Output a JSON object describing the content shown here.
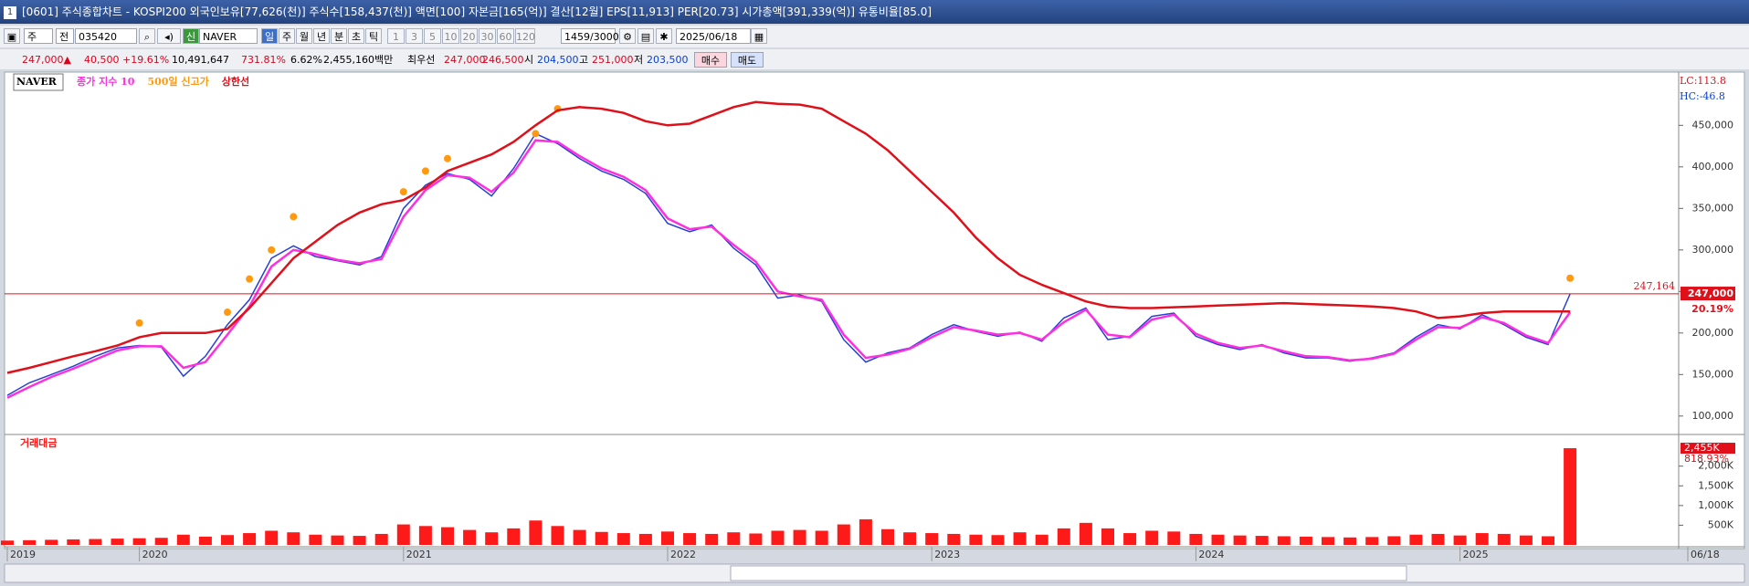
{
  "window": {
    "title": "[0601] 주식종합차트 - KOSPI200 외국인보유[77,626(천)] 주식수[158,437(천)] 액면[100] 자본금[165(억)] 결산[12월] EPS[11,913] PER[20.73] 시가총액[391,339(억)] 유통비율[85.0]",
    "number": "1"
  },
  "toolbar": {
    "mode": "주",
    "type": "전",
    "code": "035420",
    "flag": "신",
    "name": "NAVER",
    "periods": [
      "일",
      "주",
      "월",
      "년",
      "분",
      "초",
      "틱"
    ],
    "intervals": [
      "1",
      "3",
      "5",
      "10",
      "20",
      "30",
      "60",
      "120"
    ],
    "count": "1459/3000",
    "date": "2025/06/18"
  },
  "info_row": {
    "price": "247,000▲",
    "change": "40,500",
    "change_pct": "+19.61%",
    "volume": "10,491,647",
    "volume_pct": "731.81%",
    "turnover": "6.62%",
    "amount": "2,455,160백만",
    "best_label": "최우선",
    "best_ask": "247,000",
    "best_bid": "246,500",
    "open_label": "시",
    "open": "204,500",
    "high_label": "고",
    "high": "251,000",
    "low_label": "저",
    "low": "203,500",
    "buy": "매수",
    "sell": "매도"
  },
  "chart_data": [
    {
      "type": "line",
      "lc": "LC:113.8",
      "hc": "HC:-46.8",
      "categories": [
        "2019",
        null,
        null,
        null,
        null,
        null,
        "2020",
        null,
        null,
        null,
        null,
        null,
        null,
        null,
        null,
        null,
        null,
        null,
        "2021",
        null,
        null,
        null,
        null,
        null,
        null,
        null,
        null,
        null,
        null,
        null,
        "2022",
        null,
        null,
        null,
        null,
        null,
        null,
        null,
        null,
        null,
        null,
        null,
        "2023",
        null,
        null,
        null,
        null,
        null,
        null,
        null,
        null,
        null,
        null,
        null,
        "2024",
        null,
        null,
        null,
        null,
        null,
        null,
        null,
        null,
        null,
        null,
        null,
        "2025",
        null,
        null,
        null,
        null,
        "06/18"
      ],
      "series": [
        {
          "name": "NAVER",
          "color": "#2440d8",
          "values": [
            125000,
            140000,
            150000,
            160000,
            172000,
            182000,
            185000,
            183000,
            148000,
            172000,
            210000,
            240000,
            290000,
            305000,
            292000,
            287000,
            282000,
            292000,
            350000,
            378000,
            392000,
            385000,
            365000,
            398000,
            440000,
            428000,
            410000,
            395000,
            385000,
            368000,
            332000,
            322000,
            330000,
            302000,
            282000,
            242000,
            246000,
            238000,
            192000,
            165000,
            176000,
            182000,
            198000,
            210000,
            202000,
            196000,
            201000,
            190000,
            218000,
            230000,
            192000,
            196000,
            220000,
            224000,
            196000,
            186000,
            180000,
            186000,
            176000,
            170000,
            170000,
            166000,
            170000,
            176000,
            195000,
            210000,
            205000,
            222000,
            210000,
            195000,
            186000,
            247000
          ]
        },
        {
          "name": "종가 지수 10",
          "color": "#ff2fe0",
          "values": [
            122000,
            135000,
            147000,
            157000,
            168000,
            179000,
            184000,
            184000,
            158000,
            165000,
            198000,
            232000,
            280000,
            300000,
            295000,
            288000,
            284000,
            289000,
            340000,
            372000,
            390000,
            387000,
            370000,
            393000,
            432000,
            430000,
            413000,
            398000,
            388000,
            372000,
            338000,
            325000,
            328000,
            306000,
            286000,
            250000,
            244000,
            240000,
            198000,
            170000,
            174000,
            181000,
            195000,
            207000,
            203000,
            198000,
            200000,
            192000,
            213000,
            228000,
            198000,
            195000,
            216000,
            222000,
            199000,
            188000,
            182000,
            185000,
            178000,
            172000,
            171000,
            167000,
            169000,
            175000,
            192000,
            207000,
            206000,
            219000,
            212000,
            197000,
            188000,
            225000
          ]
        },
        {
          "name": "500일 신고가",
          "color": "#ff9a10",
          "marker": "dot",
          "values": [
            null,
            null,
            null,
            null,
            null,
            null,
            212000,
            null,
            null,
            null,
            225000,
            265000,
            300000,
            340000,
            null,
            null,
            null,
            null,
            370000,
            395000,
            410000,
            null,
            null,
            null,
            440000,
            470000,
            null,
            null,
            null,
            null,
            null,
            null,
            null,
            null,
            null,
            null,
            null,
            null,
            null,
            null,
            null,
            null,
            null,
            null,
            null,
            null,
            null,
            null,
            null,
            null,
            null,
            null,
            null,
            null,
            null,
            null,
            null,
            null,
            null,
            null,
            null,
            null,
            null,
            null,
            null,
            null,
            null,
            null,
            null,
            null,
            null,
            266000
          ]
        },
        {
          "name": "상한선",
          "color": "#e0101b",
          "values": [
            152000,
            158000,
            165000,
            172000,
            178000,
            185000,
            195000,
            200000,
            200000,
            200000,
            205000,
            230000,
            260000,
            290000,
            310000,
            330000,
            345000,
            355000,
            360000,
            375000,
            395000,
            405000,
            415000,
            430000,
            450000,
            468000,
            472000,
            470000,
            465000,
            455000,
            450000,
            452000,
            462000,
            472000,
            478000,
            476000,
            475000,
            470000,
            455000,
            440000,
            420000,
            395000,
            370000,
            345000,
            315000,
            290000,
            270000,
            258000,
            248000,
            238000,
            232000,
            230000,
            230000,
            231000,
            232000,
            233000,
            234000,
            235000,
            236000,
            235000,
            234000,
            233000,
            232000,
            230000,
            226000,
            218000,
            220000,
            224000,
            226000,
            226000,
            226000,
            226000
          ]
        }
      ],
      "ylim": [
        80000,
        513000
      ],
      "yticks": [
        {
          "value": 100000,
          "label": "100,000"
        },
        {
          "value": 150000,
          "label": "150,000"
        },
        {
          "value": 200000,
          "label": "200,000"
        },
        {
          "value": 250000,
          "label": "250,000"
        },
        {
          "value": 300000,
          "label": "300,000"
        },
        {
          "value": 350000,
          "label": "350,000"
        },
        {
          "value": 400000,
          "label": "400,000"
        },
        {
          "value": 450000,
          "label": "450,000"
        }
      ],
      "hline": {
        "value": 247164,
        "label": "247,164"
      },
      "last": {
        "value": 247000,
        "label": "247,000"
      },
      "last_pct": "20.19%"
    },
    {
      "type": "bar",
      "series": [
        {
          "name": "거래대금",
          "color": "#ff1a1a",
          "values": [
            110,
            120,
            130,
            140,
            150,
            160,
            170,
            180,
            260,
            210,
            250,
            300,
            360,
            320,
            260,
            240,
            230,
            280,
            520,
            480,
            450,
            380,
            320,
            420,
            620,
            480,
            380,
            330,
            300,
            280,
            340,
            300,
            280,
            320,
            290,
            360,
            380,
            360,
            520,
            650,
            400,
            320,
            300,
            280,
            260,
            250,
            320,
            260,
            420,
            560,
            420,
            300,
            360,
            340,
            280,
            260,
            240,
            230,
            220,
            210,
            200,
            190,
            200,
            220,
            260,
            280,
            240,
            300,
            280,
            240,
            220,
            2455
          ]
        }
      ],
      "ylim": [
        0,
        2734
      ],
      "yticks": [
        {
          "value": 500,
          "label": "500K"
        },
        {
          "value": 1000,
          "label": "1,000K"
        },
        {
          "value": 1500,
          "label": "1,500K"
        },
        {
          "value": 2000,
          "label": "2,000K"
        }
      ],
      "last": {
        "value": 2455,
        "label": "2,455K"
      },
      "last_pct": "818.93%"
    }
  ]
}
